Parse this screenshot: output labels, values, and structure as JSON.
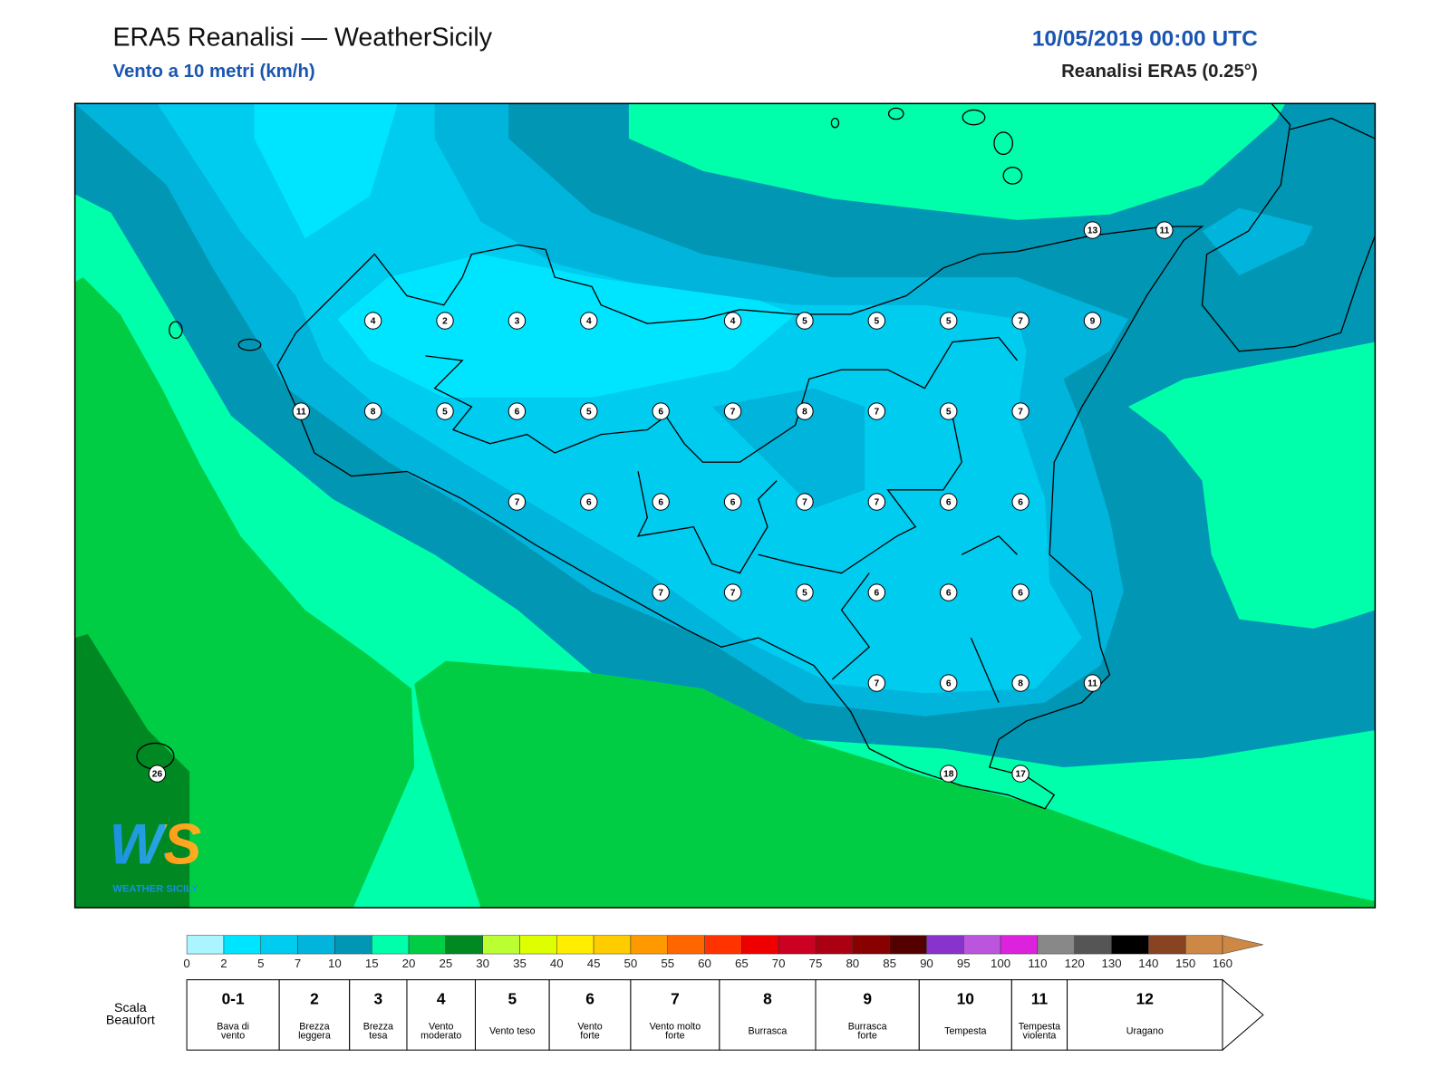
{
  "header": {
    "title": "ERA5 Reanalisi — WeatherSicily",
    "subtitle": "Vento a 10 metri (km/h)",
    "datetime": "10/05/2019 00:00 UTC",
    "source": "Reanalisi ERA5 (0.25°)"
  },
  "logo": {
    "mark": "WS",
    "text": "WEATHER SICILY"
  },
  "stations": {
    "rows": [
      [
        null,
        null,
        null,
        null,
        null,
        null,
        null,
        null,
        null,
        null,
        null,
        null,
        null,
        13,
        11
      ],
      [
        null,
        null,
        null,
        4,
        2,
        3,
        4,
        null,
        4,
        5,
        5,
        5,
        7,
        9,
        null
      ],
      [
        null,
        null,
        11,
        8,
        5,
        6,
        5,
        6,
        7,
        8,
        7,
        5,
        7,
        null,
        null
      ],
      [
        null,
        null,
        null,
        null,
        null,
        7,
        6,
        6,
        6,
        7,
        7,
        6,
        6,
        null,
        null
      ],
      [
        null,
        null,
        null,
        null,
        null,
        null,
        null,
        7,
        7,
        5,
        6,
        6,
        6,
        null,
        null
      ],
      [
        null,
        null,
        null,
        null,
        null,
        null,
        null,
        null,
        null,
        null,
        7,
        6,
        8,
        11,
        null
      ],
      [
        26,
        null,
        null,
        null,
        null,
        null,
        null,
        null,
        null,
        null,
        null,
        18,
        17,
        null,
        null
      ]
    ]
  },
  "colorbar": {
    "ticks": [
      0,
      2,
      5,
      7,
      10,
      15,
      20,
      25,
      30,
      35,
      40,
      45,
      50,
      55,
      60,
      65,
      70,
      75,
      80,
      85,
      90,
      95,
      100,
      110,
      120,
      130,
      140,
      150,
      160
    ],
    "colors": [
      "#aaf5ff",
      "#00e5ff",
      "#00ccf0",
      "#00b4dc",
      "#0096b4",
      "#00ffaa",
      "#00cc44",
      "#008822",
      "#bbff33",
      "#ddff00",
      "#ffee00",
      "#ffcc00",
      "#ff9900",
      "#ff6600",
      "#ff3300",
      "#ee0000",
      "#cc0022",
      "#aa0011",
      "#880000",
      "#550000",
      "#8833cc",
      "#bb55dd",
      "#dd22dd",
      "#888888",
      "#555555",
      "#000000",
      "#884422",
      "#cc8844"
    ]
  },
  "beaufort": {
    "label": [
      "Scala",
      "Beaufort"
    ],
    "classes": [
      {
        "force": "0-1",
        "desc": [
          "Bava di",
          "vento"
        ]
      },
      {
        "force": "2",
        "desc": [
          "Brezza",
          "leggera"
        ]
      },
      {
        "force": "3",
        "desc": [
          "Brezza",
          "tesa"
        ]
      },
      {
        "force": "4",
        "desc": [
          "Vento",
          "moderato"
        ]
      },
      {
        "force": "5",
        "desc": [
          "Vento teso"
        ]
      },
      {
        "force": "6",
        "desc": [
          "Vento",
          "forte"
        ]
      },
      {
        "force": "7",
        "desc": [
          "Vento molto",
          "forte"
        ]
      },
      {
        "force": "8",
        "desc": [
          "Burrasca"
        ]
      },
      {
        "force": "9",
        "desc": [
          "Burrasca",
          "forte"
        ]
      },
      {
        "force": "10",
        "desc": [
          "Tempesta"
        ]
      },
      {
        "force": "11",
        "desc": [
          "Tempesta",
          "violenta"
        ]
      },
      {
        "force": "12",
        "desc": [
          "Uragano"
        ]
      }
    ]
  }
}
